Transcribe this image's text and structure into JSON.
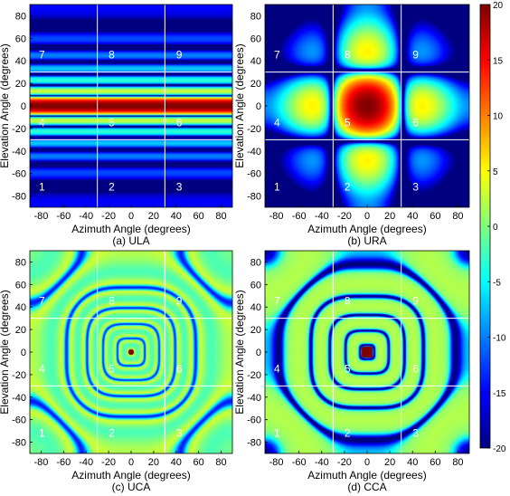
{
  "chart_data": [
    {
      "type": "heatmap",
      "caption": "(a) ULA",
      "xlabel": "Azimuth Angle (degrees)",
      "ylabel": "Elevation Angle (degrees)",
      "xlim": [
        -90,
        90
      ],
      "ylim": [
        -90,
        90
      ],
      "xticks": [
        "-80",
        "-60",
        "-40",
        "-20",
        "0",
        "20",
        "40",
        "60",
        "80"
      ],
      "yticks": [
        "80",
        "60",
        "40",
        "20",
        "0",
        "-20",
        "-40",
        "-60",
        "-80"
      ],
      "grid_lines": {
        "x": [
          -30,
          30
        ],
        "y": [
          -30,
          30
        ]
      },
      "region_labels": [
        "1",
        "2",
        "3",
        "4",
        "5",
        "6",
        "7",
        "8",
        "9"
      ],
      "pattern": "ula"
    },
    {
      "type": "heatmap",
      "caption": "(b) URA",
      "xlabel": "Azimuth Angle (degrees)",
      "ylabel": "Elevation Angle (degrees)",
      "xlim": [
        -90,
        90
      ],
      "ylim": [
        -90,
        90
      ],
      "xticks": [
        "-80",
        "-60",
        "-40",
        "-20",
        "0",
        "20",
        "40",
        "60",
        "80"
      ],
      "yticks": [
        "80",
        "60",
        "40",
        "20",
        "0",
        "-20",
        "-40",
        "-60",
        "-80"
      ],
      "grid_lines": {
        "x": [
          -30,
          30
        ],
        "y": [
          -30,
          30
        ]
      },
      "region_labels": [
        "1",
        "2",
        "3",
        "4",
        "5",
        "6",
        "7",
        "8",
        "9"
      ],
      "pattern": "ura"
    },
    {
      "type": "heatmap",
      "caption": "(c) UCA",
      "xlabel": "Azimuth Angle (degrees)",
      "ylabel": "Elevation Angle (degrees)",
      "xlim": [
        -90,
        90
      ],
      "ylim": [
        -90,
        90
      ],
      "xticks": [
        "-80",
        "-60",
        "-40",
        "-20",
        "0",
        "20",
        "40",
        "60",
        "80"
      ],
      "yticks": [
        "80",
        "60",
        "40",
        "20",
        "0",
        "-20",
        "-40",
        "-60",
        "-80"
      ],
      "grid_lines": {
        "x": [
          -30,
          30
        ],
        "y": [
          -30,
          30
        ]
      },
      "region_labels": [
        "1",
        "2",
        "3",
        "4",
        "5",
        "6",
        "7",
        "8",
        "9"
      ],
      "pattern": "uca"
    },
    {
      "type": "heatmap",
      "caption": "(d) CCA",
      "xlabel": "Azimuth Angle (degrees)",
      "ylabel": "Elevation Angle (degrees)",
      "xlim": [
        -90,
        90
      ],
      "ylim": [
        -90,
        90
      ],
      "xticks": [
        "-80",
        "-60",
        "-40",
        "-20",
        "0",
        "20",
        "40",
        "60",
        "80"
      ],
      "yticks": [
        "80",
        "60",
        "40",
        "20",
        "0",
        "-20",
        "-40",
        "-60",
        "-80"
      ],
      "grid_lines": {
        "x": [
          -30,
          30
        ],
        "y": [
          -30,
          30
        ]
      },
      "region_labels": [
        "1",
        "2",
        "3",
        "4",
        "5",
        "6",
        "7",
        "8",
        "9"
      ],
      "pattern": "cca"
    }
  ],
  "colorbar": {
    "range": [
      -20,
      20
    ],
    "ticks": [
      "20",
      "15",
      "10",
      "5",
      "0",
      "-5",
      "-10",
      "-15",
      "-20"
    ],
    "colormap": "jet"
  }
}
